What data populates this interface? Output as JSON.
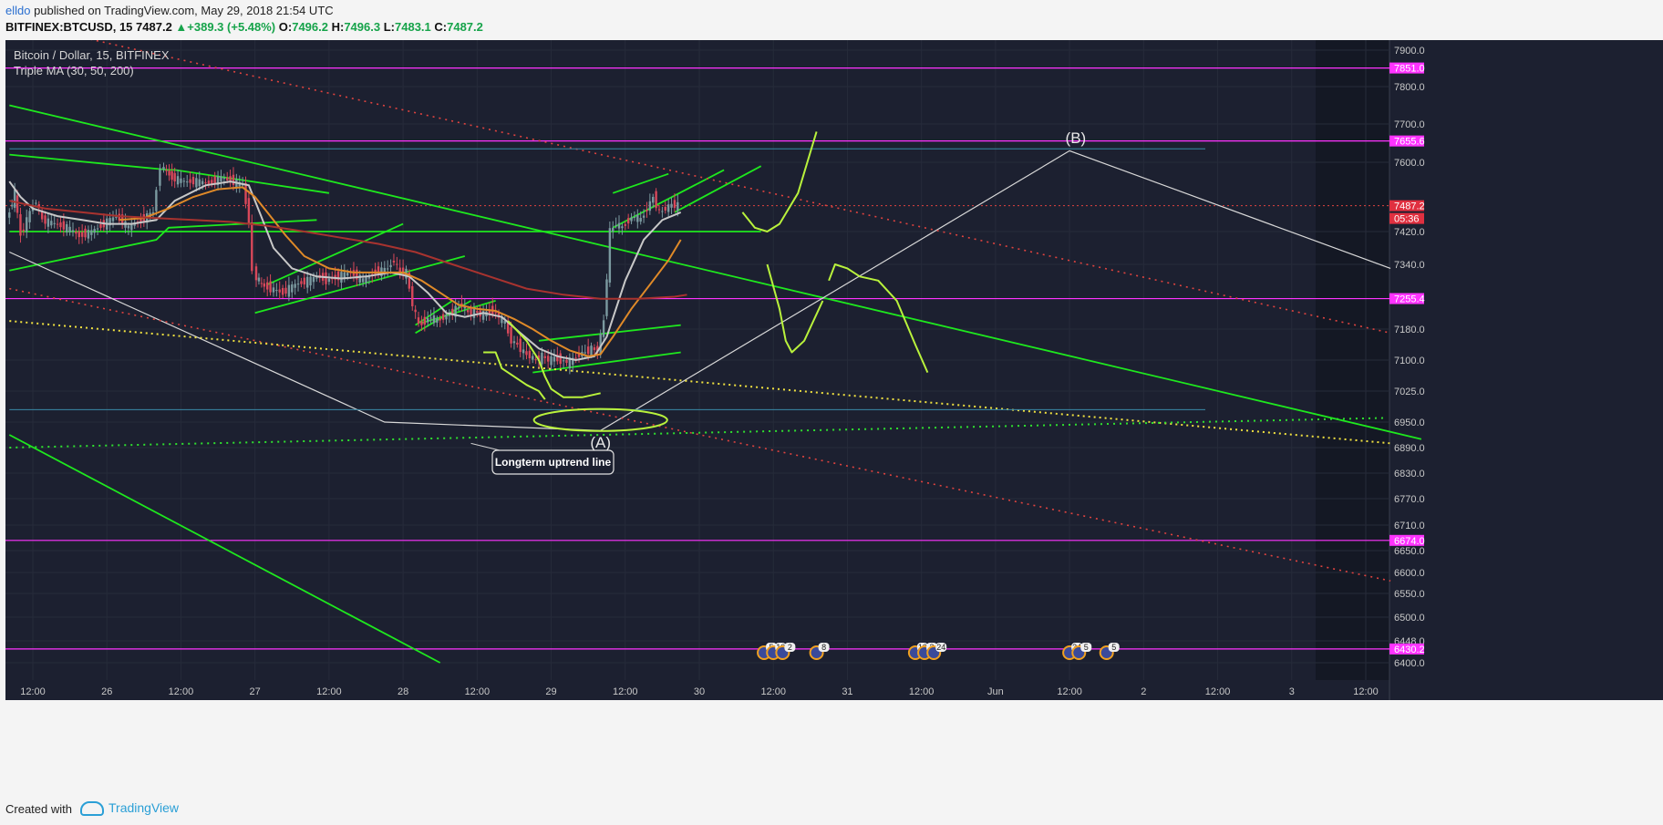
{
  "header": {
    "user": "elldo",
    "published": " published on TradingView.com, May 29, 2018 21:54 UTC",
    "symbol": "BITFINEX:BTCUSD, 15",
    "last": "7487.2",
    "change": "▲+389.3 (+5.48%)",
    "o_label": "O:",
    "o": "7496.2",
    "h_label": "H:",
    "h": "7496.3",
    "l_label": "L:",
    "l": "7483.1",
    "c_label": "C:",
    "c": "7487.2"
  },
  "legend": {
    "title": "Bitcoin / Dollar, 15, BITFINEX",
    "indicator": "Triple MA (30, 50, 200)"
  },
  "footer": {
    "created_with": "Created with",
    "brand": "TradingView"
  },
  "colors": {
    "background": "#1c2030",
    "background_right": "#141824",
    "trend_green": "#1ee81e",
    "level_magenta": "#ff33ff",
    "hand_drawn": "#b9f23c",
    "red_dotted": "#e0433f",
    "yellow_dotted": "#f0e140",
    "candle_up": "#7b9aa0",
    "candle_down": "#d8485a",
    "ma30": "#c8c8c8",
    "ma50": "#e08a28",
    "ma200": "#a8332f"
  },
  "chart_data": {
    "type": "candlestick",
    "symbol": "BTCUSD",
    "interval": "15",
    "exchange": "BITFINEX",
    "y_axis": {
      "ticks": [
        "7900.0",
        "7800.0",
        "7700.0",
        "7600.0",
        "7420.0",
        "7340.0",
        "7180.0",
        "7100.0",
        "7025.0",
        "6950.0",
        "6890.0",
        "6830.0",
        "6770.0",
        "6710.0",
        "6650.0",
        "6600.0",
        "6550.0",
        "6500.0",
        "6448.0",
        "6400.0"
      ],
      "tick_values": [
        7900,
        7800,
        7700,
        7600,
        7420,
        7340,
        7180,
        7100,
        7025,
        6950,
        6890,
        6830,
        6770,
        6710,
        6650,
        6600,
        6550,
        6500,
        6448,
        6400
      ]
    },
    "x_axis": {
      "ticks": [
        "12:00",
        "26",
        "12:00",
        "27",
        "12:00",
        "28",
        "12:00",
        "29",
        "12:00",
        "30",
        "12:00",
        "31",
        "12:00",
        "Jun",
        "12:00",
        "2",
        "12:00",
        "3",
        "12:00"
      ],
      "tick_hours": [
        12,
        24,
        36,
        48,
        60,
        72,
        84,
        96,
        108,
        120,
        132,
        144,
        156,
        168,
        180,
        192,
        204,
        216,
        228
      ],
      "range_hours": [
        8.2,
        231.5
      ]
    },
    "price_labels": [
      {
        "value": 7851.0,
        "text": "7851.0",
        "kind": "level"
      },
      {
        "value": 7655.6,
        "text": "7655.6",
        "kind": "level"
      },
      {
        "value": 7487.2,
        "text": "7487.2",
        "kind": "last"
      },
      {
        "value": 7487.2,
        "text": "05:36",
        "kind": "countdown"
      },
      {
        "value": 7255.4,
        "text": "7255.4",
        "kind": "level"
      },
      {
        "value": 6674.0,
        "text": "6674.0",
        "kind": "level"
      },
      {
        "value": 6430.2,
        "text": "6430.2",
        "kind": "level"
      }
    ],
    "horizontal_levels": [
      7851.0,
      7655.6,
      7255.4,
      6674.0,
      6430.2
    ],
    "price_path": [
      [
        8.2,
        7450
      ],
      [
        9.5,
        7520
      ],
      [
        10.5,
        7410
      ],
      [
        12,
        7470
      ],
      [
        13,
        7500
      ],
      [
        14,
        7450
      ],
      [
        16,
        7440
      ],
      [
        18,
        7430
      ],
      [
        20,
        7410
      ],
      [
        22,
        7420
      ],
      [
        24,
        7440
      ],
      [
        26,
        7460
      ],
      [
        28,
        7430
      ],
      [
        30,
        7450
      ],
      [
        32,
        7470
      ],
      [
        33.2,
        7590
      ],
      [
        35,
        7560
      ],
      [
        37,
        7550
      ],
      [
        39,
        7550
      ],
      [
        41,
        7545
      ],
      [
        43,
        7560
      ],
      [
        45,
        7550
      ],
      [
        46.5,
        7540
      ],
      [
        47.5,
        7450
      ],
      [
        48.2,
        7320
      ],
      [
        49.5,
        7290
      ],
      [
        51,
        7280
      ],
      [
        53,
        7270
      ],
      [
        55,
        7290
      ],
      [
        57,
        7300
      ],
      [
        59,
        7310
      ],
      [
        60,
        7300
      ],
      [
        62,
        7310
      ],
      [
        64,
        7320
      ],
      [
        66,
        7300
      ],
      [
        68,
        7320
      ],
      [
        70,
        7330
      ],
      [
        71,
        7350
      ],
      [
        72,
        7320
      ],
      [
        73,
        7320
      ],
      [
        74,
        7240
      ],
      [
        75,
        7190
      ],
      [
        76,
        7200
      ],
      [
        77,
        7210
      ],
      [
        78,
        7200
      ],
      [
        79,
        7210
      ],
      [
        80,
        7215
      ],
      [
        81,
        7230
      ],
      [
        82,
        7240
      ],
      [
        83,
        7220
      ],
      [
        84,
        7225
      ],
      [
        85,
        7215
      ],
      [
        86,
        7220
      ],
      [
        87,
        7225
      ],
      [
        88,
        7210
      ],
      [
        89,
        7195
      ],
      [
        90,
        7150
      ],
      [
        91,
        7140
      ],
      [
        92,
        7120
      ],
      [
        93,
        7110
      ],
      [
        94,
        7100
      ],
      [
        95,
        7110
      ],
      [
        96,
        7100
      ],
      [
        97,
        7105
      ],
      [
        98,
        7100
      ],
      [
        99,
        7095
      ],
      [
        100,
        7100
      ],
      [
        101,
        7115
      ],
      [
        102,
        7120
      ],
      [
        103,
        7130
      ],
      [
        104,
        7125
      ],
      [
        105,
        7200
      ],
      [
        106,
        7420
      ],
      [
        107,
        7440
      ],
      [
        108,
        7430
      ],
      [
        109,
        7450
      ],
      [
        110,
        7460
      ],
      [
        111,
        7450
      ],
      [
        112,
        7480
      ],
      [
        113,
        7510
      ],
      [
        114,
        7470
      ],
      [
        115,
        7480
      ],
      [
        116,
        7490
      ],
      [
        117,
        7487.2
      ]
    ],
    "moving_averages": [
      {
        "name": "MA30",
        "points": [
          [
            8.2,
            7550
          ],
          [
            10,
            7510
          ],
          [
            12,
            7480
          ],
          [
            14,
            7470
          ],
          [
            16,
            7460
          ],
          [
            20,
            7450
          ],
          [
            24,
            7440
          ],
          [
            28,
            7440
          ],
          [
            32,
            7450
          ],
          [
            35,
            7500
          ],
          [
            40,
            7540
          ],
          [
            44,
            7550
          ],
          [
            47,
            7540
          ],
          [
            49,
            7460
          ],
          [
            51,
            7380
          ],
          [
            54,
            7330
          ],
          [
            58,
            7310
          ],
          [
            62,
            7305
          ],
          [
            66,
            7310
          ],
          [
            70,
            7320
          ],
          [
            73,
            7310
          ],
          [
            76,
            7270
          ],
          [
            79,
            7220
          ],
          [
            82,
            7210
          ],
          [
            85,
            7220
          ],
          [
            88,
            7210
          ],
          [
            91,
            7170
          ],
          [
            94,
            7130
          ],
          [
            97,
            7110
          ],
          [
            100,
            7100
          ],
          [
            103,
            7110
          ],
          [
            105,
            7160
          ],
          [
            108,
            7300
          ],
          [
            111,
            7400
          ],
          [
            114,
            7450
          ],
          [
            117,
            7470
          ]
        ]
      },
      {
        "name": "MA50",
        "points": [
          [
            26,
            7450
          ],
          [
            30,
            7455
          ],
          [
            34,
            7480
          ],
          [
            38,
            7510
          ],
          [
            42,
            7530
          ],
          [
            46,
            7535
          ],
          [
            48,
            7510
          ],
          [
            50,
            7470
          ],
          [
            53,
            7410
          ],
          [
            56,
            7360
          ],
          [
            60,
            7330
          ],
          [
            64,
            7320
          ],
          [
            68,
            7320
          ],
          [
            72,
            7320
          ],
          [
            75,
            7300
          ],
          [
            78,
            7270
          ],
          [
            81,
            7240
          ],
          [
            84,
            7230
          ],
          [
            87,
            7225
          ],
          [
            90,
            7205
          ],
          [
            93,
            7180
          ],
          [
            96,
            7150
          ],
          [
            99,
            7125
          ],
          [
            102,
            7110
          ],
          [
            104,
            7115
          ],
          [
            106,
            7160
          ],
          [
            109,
            7230
          ],
          [
            112,
            7290
          ],
          [
            115,
            7350
          ],
          [
            117,
            7400
          ]
        ]
      },
      {
        "name": "MA200",
        "points": [
          [
            8.2,
            7500
          ],
          [
            14,
            7480
          ],
          [
            20,
            7470
          ],
          [
            26,
            7460
          ],
          [
            32,
            7455
          ],
          [
            38,
            7450
          ],
          [
            44,
            7445
          ],
          [
            50,
            7435
          ],
          [
            56,
            7420
          ],
          [
            62,
            7405
          ],
          [
            68,
            7390
          ],
          [
            74,
            7370
          ],
          [
            80,
            7340
          ],
          [
            86,
            7310
          ],
          [
            92,
            7280
          ],
          [
            98,
            7265
          ],
          [
            104,
            7255
          ],
          [
            110,
            7255
          ],
          [
            116,
            7260
          ],
          [
            118,
            7265
          ]
        ]
      }
    ],
    "trend_lines": [
      {
        "style": "green",
        "points": [
          [
            8.2,
            7750
          ],
          [
            237,
            6910
          ]
        ]
      },
      {
        "style": "green",
        "points": [
          [
            8.2,
            6920
          ],
          [
            78,
            6400
          ]
        ]
      },
      {
        "style": "green",
        "points": [
          [
            8.2,
            7620
          ],
          [
            34,
            7580
          ],
          [
            35,
            7580
          ],
          [
            60,
            7520
          ]
        ]
      },
      {
        "style": "green",
        "points": [
          [
            8.2,
            7325
          ],
          [
            32,
            7400
          ],
          [
            34,
            7430
          ],
          [
            58,
            7450
          ]
        ]
      },
      {
        "style": "green",
        "points": [
          [
            8.2,
            7420
          ],
          [
            130,
            7420
          ]
        ]
      },
      {
        "style": "green",
        "points": [
          [
            48,
            7220
          ],
          [
            82,
            7360
          ]
        ]
      },
      {
        "style": "green",
        "points": [
          [
            50,
            7290
          ],
          [
            72,
            7440
          ]
        ]
      },
      {
        "style": "green",
        "points": [
          [
            74,
            7190
          ],
          [
            80,
            7250
          ]
        ]
      },
      {
        "style": "green",
        "points": [
          [
            75,
            7195
          ],
          [
            87,
            7250
          ]
        ]
      },
      {
        "style": "green",
        "points": [
          [
            74,
            7170
          ],
          [
            83,
            7250
          ]
        ]
      },
      {
        "style": "green",
        "points": [
          [
            93,
            7070
          ],
          [
            117,
            7120
          ]
        ]
      },
      {
        "style": "green",
        "points": [
          [
            94,
            7150
          ],
          [
            117,
            7190
          ]
        ]
      },
      {
        "style": "green",
        "points": [
          [
            106,
            7520
          ],
          [
            115,
            7570
          ]
        ]
      },
      {
        "style": "green",
        "points": [
          [
            106,
            7430
          ],
          [
            124,
            7580
          ]
        ]
      },
      {
        "style": "green",
        "points": [
          [
            116,
            7470
          ],
          [
            130,
            7590
          ]
        ]
      },
      {
        "style": "white",
        "points": [
          [
            8.2,
            7370
          ],
          [
            69,
            6950
          ],
          [
            104,
            6930
          ],
          [
            180,
            7630
          ],
          [
            232,
            7330
          ]
        ]
      },
      {
        "style": "red_dotted",
        "points": [
          [
            8.2,
            7980
          ],
          [
            232,
            7170
          ]
        ]
      },
      {
        "style": "red_dotted",
        "points": [
          [
            8.2,
            7280
          ],
          [
            232,
            6580
          ]
        ]
      },
      {
        "style": "yellow_dotted",
        "points": [
          [
            8.2,
            7200
          ],
          [
            232,
            6900
          ]
        ]
      },
      {
        "style": "green_dotted",
        "points": [
          [
            8.2,
            6890
          ],
          [
            231,
            6960
          ]
        ]
      },
      {
        "style": "teal",
        "points": [
          [
            8.2,
            7635
          ],
          [
            202,
            7635
          ]
        ]
      },
      {
        "style": "teal",
        "points": [
          [
            8.2,
            6980
          ],
          [
            202,
            6980
          ]
        ]
      }
    ],
    "hand_drawn": [
      {
        "points": [
          [
            89,
            7200
          ],
          [
            92,
            7150
          ],
          [
            94,
            7100
          ],
          [
            95,
            7060
          ],
          [
            96,
            7030
          ],
          [
            98,
            7010
          ],
          [
            101,
            7010
          ],
          [
            104,
            7020
          ]
        ]
      },
      {
        "points": [
          [
            127,
            7470
          ],
          [
            129,
            7430
          ],
          [
            131,
            7420
          ],
          [
            133,
            7440
          ],
          [
            136,
            7520
          ],
          [
            139,
            7680
          ]
        ]
      },
      {
        "points": [
          [
            131,
            7340
          ],
          [
            133,
            7230
          ],
          [
            134,
            7150
          ],
          [
            135,
            7120
          ],
          [
            137,
            7150
          ],
          [
            140,
            7250
          ]
        ]
      },
      {
        "points": [
          [
            141,
            7300
          ],
          [
            142,
            7340
          ],
          [
            144,
            7330
          ],
          [
            146,
            7310
          ],
          [
            149,
            7300
          ],
          [
            152,
            7250
          ],
          [
            155,
            7140
          ],
          [
            157,
            7070
          ]
        ]
      },
      {
        "points": [
          [
            85,
            7120
          ],
          [
            87,
            7120
          ],
          [
            88,
            7080
          ],
          [
            90,
            7060
          ],
          [
            92,
            7040
          ],
          [
            94,
            7025
          ],
          [
            95,
            7005
          ]
        ]
      }
    ],
    "ellipse": {
      "center": [
        104,
        6955
      ],
      "rx_hours": 10.8,
      "ry_price": 26
    },
    "annotations": [
      {
        "label": "(A)",
        "x": 104,
        "y": 6890
      },
      {
        "label": "(B)",
        "x": 181,
        "y": 7650
      },
      {
        "label": "Longterm uptrend line",
        "x": 83,
        "y": 6900
      }
    ],
    "event_markers": [
      {
        "x": 130.5,
        "text": "5"
      },
      {
        "x": 132,
        "text": "10"
      },
      {
        "x": 133.5,
        "text": "2"
      },
      {
        "x": 139,
        "text": "8"
      },
      {
        "x": 155,
        "text": "10"
      },
      {
        "x": 156.5,
        "text": "3"
      },
      {
        "x": 158,
        "text": "24"
      },
      {
        "x": 180,
        "text": "34"
      },
      {
        "x": 181.5,
        "text": "5"
      },
      {
        "x": 186,
        "text": "5"
      }
    ]
  }
}
